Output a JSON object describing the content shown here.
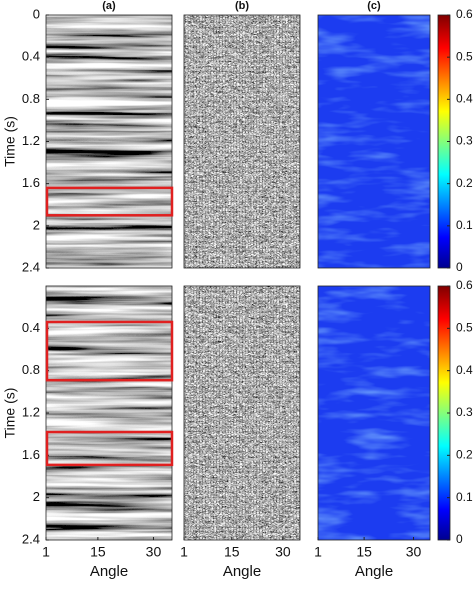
{
  "figure": {
    "panel_labels": [
      "(a)",
      "(b)",
      "(c)"
    ],
    "y_label": "Time (s)",
    "x_label": "Angle",
    "ylim": [
      0,
      2.4
    ],
    "xlim": [
      1,
      35
    ],
    "xticks": [
      1,
      15,
      30
    ],
    "colorbar": {
      "lim": [
        0,
        0.6
      ],
      "ticks": [
        0,
        0.1,
        0.2,
        0.3,
        0.4,
        0.5,
        0.6
      ]
    },
    "rows": [
      {
        "yticks": [
          0,
          0.4,
          0.8,
          1.2,
          1.6,
          2,
          2.4
        ],
        "boxes": [
          {
            "t0": 1.64,
            "t1": 1.9
          }
        ]
      },
      {
        "yticks": [
          0.4,
          0.8,
          1.2,
          1.6,
          2,
          2.4
        ],
        "boxes": [
          {
            "t0": 0.34,
            "t1": 0.89
          },
          {
            "t0": 1.38,
            "t1": 1.69
          }
        ]
      }
    ]
  }
}
